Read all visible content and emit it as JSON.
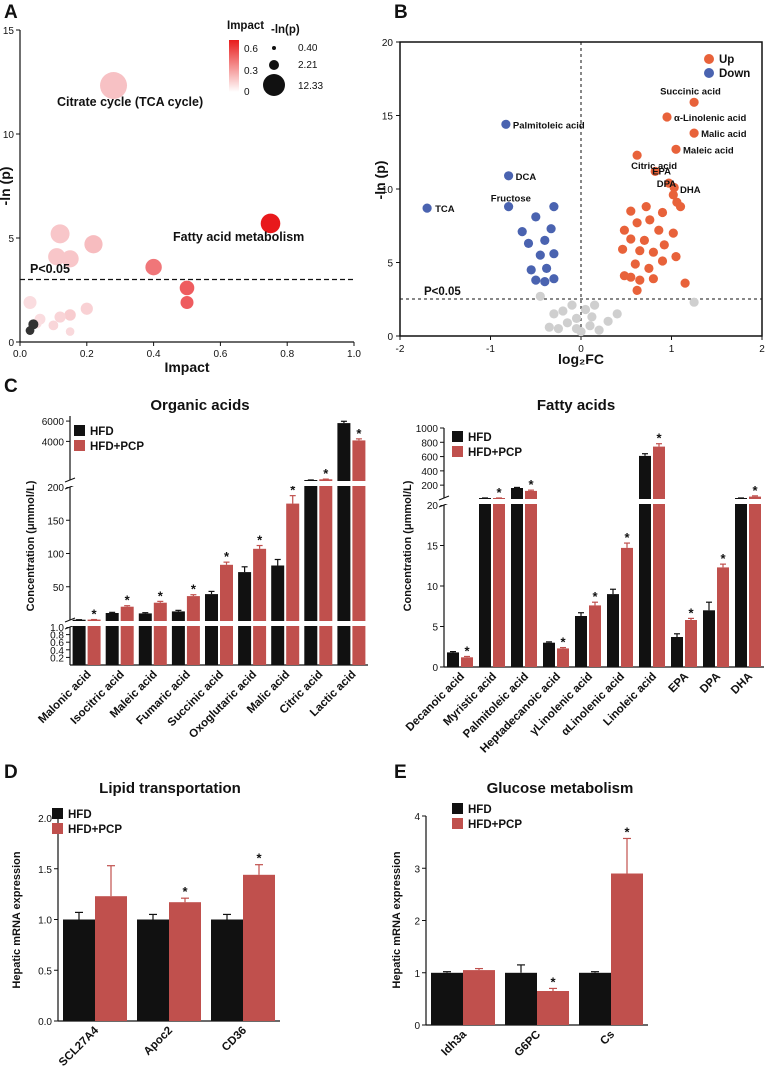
{
  "figure": {
    "panel_a": "A",
    "panel_b": "B",
    "panel_c": "C",
    "panel_d": "D",
    "panel_e": "E",
    "pval_label": "P<0.05",
    "c_title_left": "Organic acids",
    "c_title_right": "Fatty acids",
    "d_title": "Lipid transportation",
    "e_title": "Glucose metabolism"
  },
  "colors": {
    "hfd": "#111111",
    "pcp": "#c0504d",
    "up": "#e8623a",
    "down": "#4a63b0",
    "ns": "#cfcfcf"
  },
  "chart_data": [
    {
      "id": "A",
      "type": "scatter",
      "title": "",
      "xlabel": "Impact",
      "ylabel": "-ln (p)",
      "xlim": [
        0,
        1.0
      ],
      "ylim": [
        0,
        15
      ],
      "xticks": [
        "0.0",
        "0.2",
        "0.4",
        "0.6",
        "0.8",
        "1.0"
      ],
      "yticks": [
        "0",
        "5",
        "10",
        "15"
      ],
      "threshold_label": "P<0.05",
      "threshold_y": 2.99,
      "legend": {
        "impact_title": "Impact",
        "impact_ticks": [
          "0.6",
          "0.3",
          "0"
        ],
        "size_title": "-ln(p)",
        "size_values": [
          "0.40",
          "2.21",
          "12.33"
        ]
      },
      "annotations": [
        "Citrate cycle (TCA cycle)",
        "Fatty acid metabolism"
      ],
      "points": [
        {
          "x": 0.28,
          "y": 12.33,
          "impact": 0.12
        },
        {
          "x": 0.75,
          "y": 5.7,
          "impact": 0.75
        },
        {
          "x": 0.12,
          "y": 5.2,
          "impact": 0.1
        },
        {
          "x": 0.22,
          "y": 4.7,
          "impact": 0.14
        },
        {
          "x": 0.11,
          "y": 4.1,
          "impact": 0.1
        },
        {
          "x": 0.15,
          "y": 4.0,
          "impact": 0.1
        },
        {
          "x": 0.4,
          "y": 3.6,
          "impact": 0.4
        },
        {
          "x": 0.5,
          "y": 2.6,
          "impact": 0.5
        },
        {
          "x": 0.5,
          "y": 1.9,
          "impact": 0.5
        },
        {
          "x": 0.03,
          "y": 1.9,
          "impact": 0.02
        },
        {
          "x": 0.2,
          "y": 1.6,
          "impact": 0.06
        },
        {
          "x": 0.15,
          "y": 1.3,
          "impact": 0.08
        },
        {
          "x": 0.12,
          "y": 1.2,
          "impact": 0.05
        },
        {
          "x": 0.06,
          "y": 1.1,
          "impact": 0.02
        },
        {
          "x": 0.05,
          "y": 0.9,
          "impact": 0.01
        },
        {
          "x": 0.1,
          "y": 0.8,
          "impact": 0.04
        },
        {
          "x": 0.15,
          "y": 0.5,
          "impact": 0.03
        },
        {
          "x": 0.04,
          "y": 0.85,
          "impact": 0.0
        },
        {
          "x": 0.03,
          "y": 0.55,
          "impact": 0.0
        }
      ]
    },
    {
      "id": "B",
      "type": "scatter",
      "title": "",
      "xlabel": "log₂FC",
      "ylabel": "-ln (p)",
      "xlim": [
        -2,
        2
      ],
      "ylim": [
        0,
        20
      ],
      "xticks": [
        "-2",
        "-1",
        "0",
        "1",
        "2"
      ],
      "yticks": [
        "0",
        "5",
        "10",
        "15",
        "20"
      ],
      "threshold_label": "P<0.05",
      "threshold_y": 2.5,
      "legend": [
        "Up",
        "Down"
      ],
      "labels": [
        {
          "text": "Succinic acid",
          "x": 1.25,
          "y": 15.9
        },
        {
          "text": "α-Linolenic acid",
          "x": 0.95,
          "y": 14.9
        },
        {
          "text": "Malic acid",
          "x": 1.25,
          "y": 13.8
        },
        {
          "text": "Maleic acid",
          "x": 1.05,
          "y": 12.7
        },
        {
          "text": "Citric acid",
          "x": 0.62,
          "y": 12.3
        },
        {
          "text": "EPA",
          "x": 0.82,
          "y": 11.2
        },
        {
          "text": "DPA",
          "x": 0.97,
          "y": 10.4
        },
        {
          "text": "DHA",
          "x": 1.05,
          "y": 10.0
        },
        {
          "text": "Palmitoleic acid",
          "x": -0.83,
          "y": 14.4
        },
        {
          "text": "DCA",
          "x": -0.8,
          "y": 10.9
        },
        {
          "text": "Fructose",
          "x": -0.4,
          "y": 8.8
        },
        {
          "text": "TCA",
          "x": -1.7,
          "y": 8.7
        }
      ],
      "points": [
        {
          "x": 1.25,
          "y": 15.9,
          "g": "up"
        },
        {
          "x": 0.95,
          "y": 14.9,
          "g": "up"
        },
        {
          "x": 1.25,
          "y": 13.8,
          "g": "up"
        },
        {
          "x": 1.05,
          "y": 12.7,
          "g": "up"
        },
        {
          "x": 0.62,
          "y": 12.3,
          "g": "up"
        },
        {
          "x": 0.82,
          "y": 11.2,
          "g": "up"
        },
        {
          "x": 0.97,
          "y": 10.4,
          "g": "up"
        },
        {
          "x": 1.03,
          "y": 10.1,
          "g": "up"
        },
        {
          "x": 1.02,
          "y": 9.6,
          "g": "up"
        },
        {
          "x": 1.06,
          "y": 9.1,
          "g": "up"
        },
        {
          "x": 1.1,
          "y": 8.8,
          "g": "up"
        },
        {
          "x": 0.55,
          "y": 8.5,
          "g": "up"
        },
        {
          "x": 0.72,
          "y": 8.8,
          "g": "up"
        },
        {
          "x": 0.9,
          "y": 8.4,
          "g": "up"
        },
        {
          "x": 0.62,
          "y": 7.7,
          "g": "up"
        },
        {
          "x": 0.76,
          "y": 7.9,
          "g": "up"
        },
        {
          "x": 0.48,
          "y": 7.2,
          "g": "up"
        },
        {
          "x": 0.86,
          "y": 7.2,
          "g": "up"
        },
        {
          "x": 1.02,
          "y": 7.0,
          "g": "up"
        },
        {
          "x": 0.7,
          "y": 6.5,
          "g": "up"
        },
        {
          "x": 0.55,
          "y": 6.6,
          "g": "up"
        },
        {
          "x": 0.92,
          "y": 6.2,
          "g": "up"
        },
        {
          "x": 0.46,
          "y": 5.9,
          "g": "up"
        },
        {
          "x": 0.65,
          "y": 5.8,
          "g": "up"
        },
        {
          "x": 0.8,
          "y": 5.7,
          "g": "up"
        },
        {
          "x": 1.05,
          "y": 5.4,
          "g": "up"
        },
        {
          "x": 0.9,
          "y": 5.1,
          "g": "up"
        },
        {
          "x": 0.6,
          "y": 4.9,
          "g": "up"
        },
        {
          "x": 0.75,
          "y": 4.6,
          "g": "up"
        },
        {
          "x": 0.48,
          "y": 4.1,
          "g": "up"
        },
        {
          "x": 0.55,
          "y": 4.0,
          "g": "up"
        },
        {
          "x": 0.65,
          "y": 3.8,
          "g": "up"
        },
        {
          "x": 0.8,
          "y": 3.9,
          "g": "up"
        },
        {
          "x": 1.15,
          "y": 3.6,
          "g": "up"
        },
        {
          "x": 0.62,
          "y": 3.1,
          "g": "up"
        },
        {
          "x": -0.83,
          "y": 14.4,
          "g": "down"
        },
        {
          "x": -0.8,
          "y": 10.9,
          "g": "down"
        },
        {
          "x": -1.7,
          "y": 8.7,
          "g": "down"
        },
        {
          "x": -0.8,
          "y": 8.8,
          "g": "down"
        },
        {
          "x": -0.3,
          "y": 8.8,
          "g": "down"
        },
        {
          "x": -0.5,
          "y": 8.1,
          "g": "down"
        },
        {
          "x": -0.33,
          "y": 7.3,
          "g": "down"
        },
        {
          "x": -0.65,
          "y": 7.1,
          "g": "down"
        },
        {
          "x": -0.4,
          "y": 6.5,
          "g": "down"
        },
        {
          "x": -0.58,
          "y": 6.3,
          "g": "down"
        },
        {
          "x": -0.3,
          "y": 5.6,
          "g": "down"
        },
        {
          "x": -0.45,
          "y": 5.5,
          "g": "down"
        },
        {
          "x": -0.55,
          "y": 4.5,
          "g": "down"
        },
        {
          "x": -0.38,
          "y": 4.6,
          "g": "down"
        },
        {
          "x": -0.3,
          "y": 3.9,
          "g": "down"
        },
        {
          "x": -0.5,
          "y": 3.8,
          "g": "down"
        },
        {
          "x": -0.4,
          "y": 3.7,
          "g": "down"
        },
        {
          "x": -0.1,
          "y": 2.1,
          "g": "ns"
        },
        {
          "x": -0.2,
          "y": 1.7,
          "g": "ns"
        },
        {
          "x": -0.3,
          "y": 1.5,
          "g": "ns"
        },
        {
          "x": 0.05,
          "y": 1.8,
          "g": "ns"
        },
        {
          "x": -0.05,
          "y": 1.2,
          "g": "ns"
        },
        {
          "x": 0.12,
          "y": 1.3,
          "g": "ns"
        },
        {
          "x": -0.15,
          "y": 0.9,
          "g": "ns"
        },
        {
          "x": 0.1,
          "y": 0.7,
          "g": "ns"
        },
        {
          "x": -0.25,
          "y": 0.5,
          "g": "ns"
        },
        {
          "x": 0.2,
          "y": 0.4,
          "g": "ns"
        },
        {
          "x": -0.35,
          "y": 0.6,
          "g": "ns"
        },
        {
          "x": 0.3,
          "y": 1.0,
          "g": "ns"
        },
        {
          "x": 0.0,
          "y": 0.3,
          "g": "ns"
        },
        {
          "x": -0.45,
          "y": 2.7,
          "g": "ns"
        },
        {
          "x": 0.4,
          "y": 1.5,
          "g": "ns"
        },
        {
          "x": 1.25,
          "y": 2.3,
          "g": "ns"
        },
        {
          "x": 0.15,
          "y": 2.1,
          "g": "ns"
        },
        {
          "x": -0.05,
          "y": 0.5,
          "g": "ns"
        }
      ]
    },
    {
      "id": "C-left",
      "type": "bar",
      "title": "Organic acids",
      "ylabel": "Concentration (μmmol/L)",
      "legend": [
        "HFD",
        "HFD+PCP"
      ],
      "categories": [
        "Malonic acid",
        "Isocitric acid",
        "Maleic acid",
        "Fumaric acid",
        "Succinic acid",
        "Oxoglutaric acid",
        "Malic acid",
        "Citric acid",
        "Lactic acid"
      ],
      "series": [
        {
          "name": "HFD",
          "values": [
            0.38,
            10.5,
            10,
            13,
            39,
            72,
            82,
            200,
            5800
          ],
          "err": [
            0.06,
            1,
            1,
            1.5,
            4,
            8,
            9,
            3,
            180
          ]
        },
        {
          "name": "HFD+PCP",
          "values": [
            0.65,
            20,
            26,
            36,
            83,
            107,
            175,
            270,
            4100
          ],
          "err": [
            0.06,
            1.5,
            2,
            2,
            4,
            5,
            12,
            20,
            150
          ]
        }
      ],
      "significant": [
        true,
        true,
        true,
        true,
        true,
        true,
        true,
        true,
        true
      ],
      "y_segments": [
        {
          "range": [
            0,
            1.0
          ],
          "ticks": [
            "0.2",
            "0.4",
            "0.6",
            "0.8",
            "1.0"
          ]
        },
        {
          "range": [
            0,
            200
          ],
          "ticks": [
            "50",
            "100",
            "150",
            "200"
          ]
        },
        {
          "range": [
            200,
            6500
          ],
          "ticks": [
            "4000",
            "6000"
          ]
        }
      ]
    },
    {
      "id": "C-right",
      "type": "bar",
      "title": "Fatty acids",
      "ylabel": "Concentration (μmmol/L)",
      "legend": [
        "HFD",
        "HFD+PCP"
      ],
      "categories": [
        "Decanoic acid",
        "Myristic acid",
        "Palmitoleic acid",
        "Heptadecanoic acid",
        "γLinolenic acid",
        "αLinolenic acid",
        "Linoleic acid",
        "EPA",
        "DPA",
        "DHA"
      ],
      "series": [
        {
          "name": "HFD",
          "values": [
            1.8,
            20,
            160,
            3.0,
            6.3,
            9.0,
            610,
            3.7,
            7.0,
            20
          ],
          "err": [
            0.1,
            0.3,
            8,
            0.1,
            0.4,
            0.6,
            30,
            0.4,
            1.0,
            0.3
          ]
        },
        {
          "name": "HFD+PCP",
          "values": [
            1.2,
            20,
            120,
            2.3,
            7.6,
            14.7,
            740,
            5.8,
            12.3,
            40
          ],
          "err": [
            0.1,
            0.3,
            10,
            0.1,
            0.4,
            0.6,
            40,
            0.2,
            0.4,
            10
          ]
        }
      ],
      "significant": [
        true,
        true,
        true,
        true,
        true,
        true,
        true,
        true,
        true,
        true
      ],
      "y_segments": [
        {
          "range": [
            0,
            20
          ],
          "ticks": [
            "0",
            "5",
            "10",
            "15",
            "20"
          ]
        },
        {
          "range": [
            20,
            1000
          ],
          "ticks": [
            "200",
            "400",
            "600",
            "800",
            "1000"
          ]
        }
      ]
    },
    {
      "id": "D",
      "type": "bar",
      "title": "Lipid transportation",
      "ylabel": "Hepatic mRNA expression",
      "legend": [
        "HFD",
        "HFD+PCP"
      ],
      "categories": [
        "SCL27A4",
        "Apoc2",
        "CD36"
      ],
      "ylim": [
        0,
        2.0
      ],
      "yticks": [
        "0.0",
        "0.5",
        "1.0",
        "1.5",
        "2.0"
      ],
      "series": [
        {
          "name": "HFD",
          "values": [
            1.0,
            1.0,
            1.0
          ],
          "err": [
            0.07,
            0.05,
            0.05
          ]
        },
        {
          "name": "HFD+PCP",
          "values": [
            1.23,
            1.17,
            1.44
          ],
          "err": [
            0.3,
            0.04,
            0.1
          ]
        }
      ],
      "significant": [
        false,
        true,
        true
      ]
    },
    {
      "id": "E",
      "type": "bar",
      "title": "Glucose metabolism",
      "ylabel": "Hepatic mRNA expression",
      "legend": [
        "HFD",
        "HFD+PCP"
      ],
      "categories": [
        "Idh3a",
        "G6PC",
        "Cs"
      ],
      "ylim": [
        0,
        4
      ],
      "yticks": [
        "0",
        "1",
        "2",
        "3",
        "4"
      ],
      "series": [
        {
          "name": "HFD",
          "values": [
            1.0,
            1.0,
            1.0
          ],
          "err": [
            0.02,
            0.15,
            0.02
          ]
        },
        {
          "name": "HFD+PCP",
          "values": [
            1.05,
            0.65,
            2.9
          ],
          "err": [
            0.03,
            0.05,
            0.67
          ]
        }
      ],
      "significant": [
        false,
        true,
        true
      ]
    }
  ]
}
